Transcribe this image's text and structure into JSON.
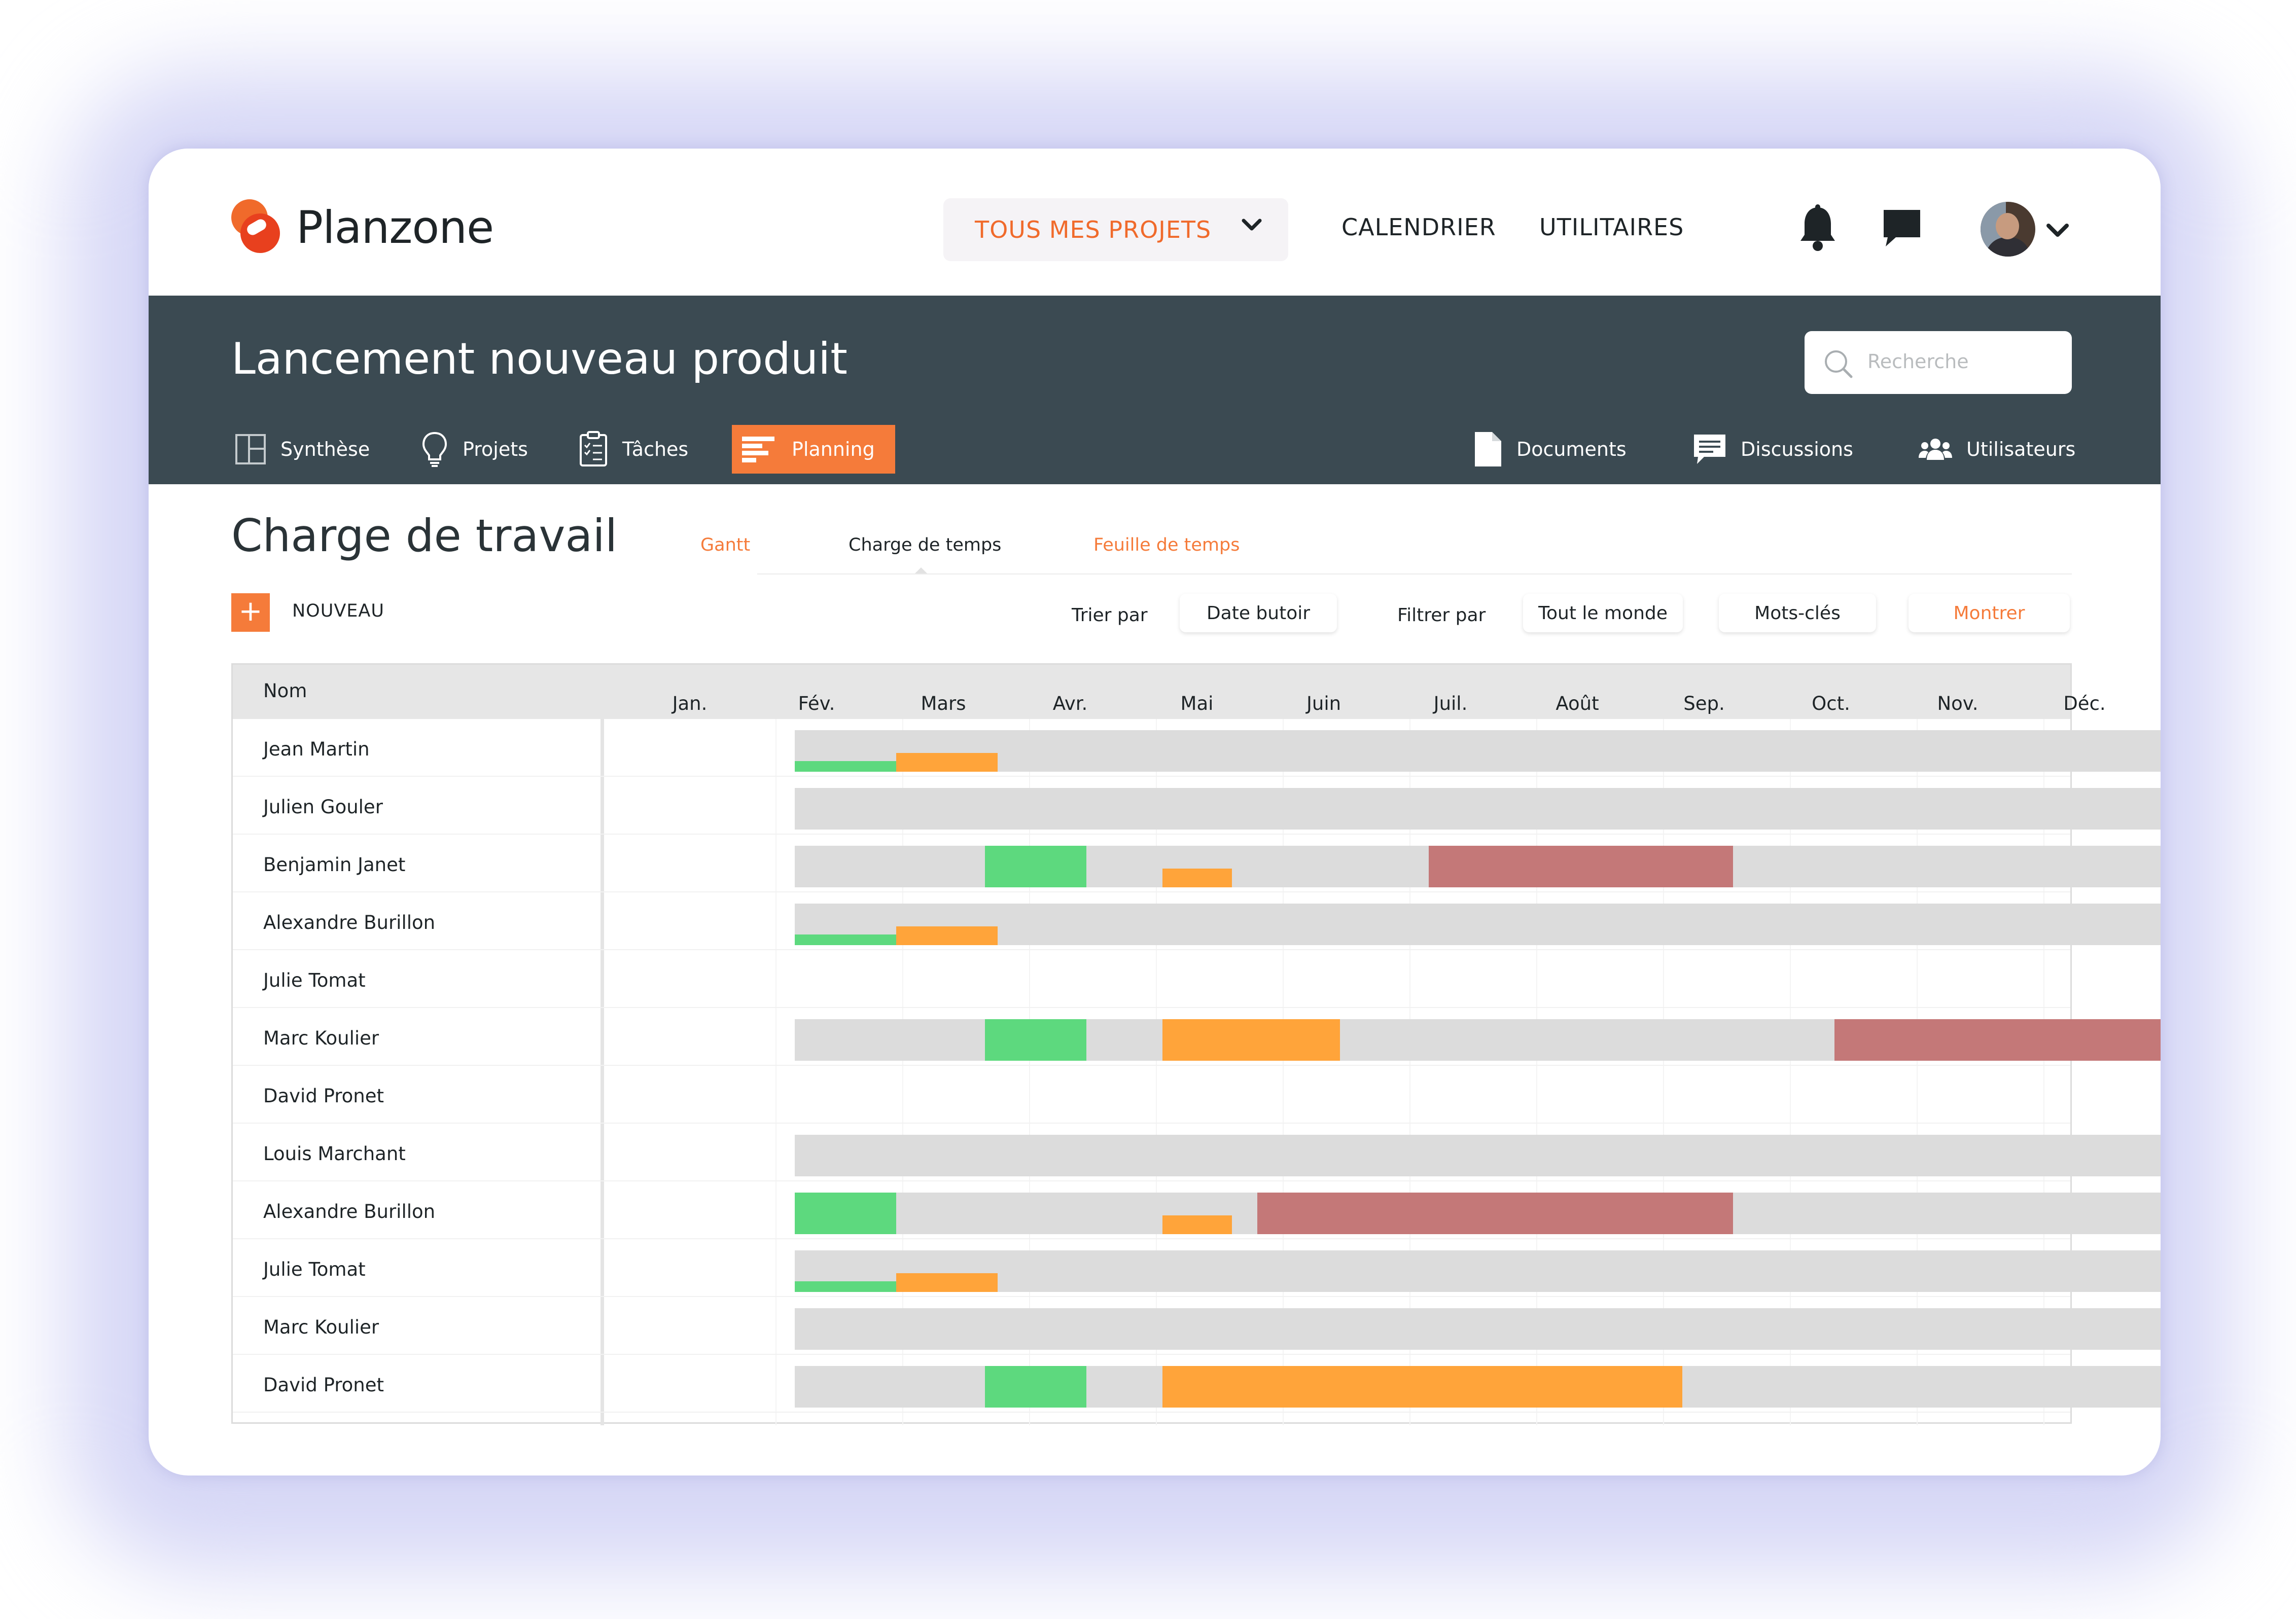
{
  "app": {
    "brand": "Planzone"
  },
  "topnav": {
    "projects_dropdown": "TOUS MES PROJETS",
    "links": [
      "CALENDRIER",
      "UTILITAIRES"
    ],
    "icons": [
      "bell-icon",
      "chat-icon",
      "avatar",
      "chevron-down-icon"
    ]
  },
  "project": {
    "title": "Lancement nouveau produit",
    "search_placeholder": "Recherche",
    "tabs": [
      {
        "label": "Synthèse",
        "icon": "layout-icon",
        "active": false
      },
      {
        "label": "Projets",
        "icon": "lightbulb-icon",
        "active": false
      },
      {
        "label": "Tâches",
        "icon": "checklist-icon",
        "active": false
      },
      {
        "label": "Planning",
        "icon": "gantt-icon",
        "active": true
      }
    ],
    "right_tabs": [
      {
        "label": "Documents",
        "icon": "document-icon"
      },
      {
        "label": "Discussions",
        "icon": "speech-bubble-icon"
      },
      {
        "label": "Utilisateurs",
        "icon": "users-icon"
      }
    ]
  },
  "page": {
    "title": "Charge de travail",
    "subtabs": [
      {
        "label": "Gantt",
        "active": false
      },
      {
        "label": "Charge de temps",
        "active": true
      },
      {
        "label": "Feuille de temps",
        "active": false
      }
    ],
    "new_label": "NOUVEAU",
    "sort_label": "Trier par",
    "sort_value": "Date butoir",
    "filter_label": "Filtrer par",
    "filter_value": "Tout le monde",
    "keywords": "Mots-clés",
    "show": "Montrer"
  },
  "colors": {
    "accent": "#f57b3a",
    "header_bg": "#3b4a52",
    "track": "#dcdcdc",
    "green": "#5dd97e",
    "orange": "#ffa43a",
    "red": "#c47878"
  },
  "table": {
    "name_header": "Nom",
    "months": [
      "Jan.",
      "Fév.",
      "Mars",
      "Avr.",
      "Mai",
      "Juin",
      "Juil.",
      "Août",
      "Sep.",
      "Oct.",
      "Nov.",
      "Déc."
    ],
    "rows": [
      {
        "name": "Jean Martin",
        "track": [
          1.15,
          12.0
        ],
        "segments": [
          {
            "start": 1.15,
            "end": 1.95,
            "level": 0.25,
            "color": "green"
          },
          {
            "start": 1.95,
            "end": 2.75,
            "level": 0.45,
            "color": "orange"
          }
        ]
      },
      {
        "name": "Julien Gouler",
        "track": [
          1.15,
          12.0
        ],
        "segments": []
      },
      {
        "name": "Benjamin Janet",
        "track": [
          1.15,
          12.0
        ],
        "segments": [
          {
            "start": 2.65,
            "end": 3.45,
            "level": 1.0,
            "color": "green"
          },
          {
            "start": 4.05,
            "end": 4.6,
            "level": 0.45,
            "color": "orange"
          },
          {
            "start": 6.15,
            "end": 8.55,
            "level": 1.0,
            "color": "red"
          }
        ]
      },
      {
        "name": "Alexandre Burillon",
        "track": [
          1.15,
          12.0
        ],
        "segments": [
          {
            "start": 1.15,
            "end": 1.95,
            "level": 0.25,
            "color": "green"
          },
          {
            "start": 1.95,
            "end": 2.75,
            "level": 0.45,
            "color": "orange"
          }
        ]
      },
      {
        "name": "Julie Tomat",
        "track": null,
        "segments": []
      },
      {
        "name": "Marc Koulier",
        "track": [
          1.15,
          12.0
        ],
        "segments": [
          {
            "start": 2.65,
            "end": 3.45,
            "level": 1.0,
            "color": "green"
          },
          {
            "start": 4.05,
            "end": 5.45,
            "level": 1.0,
            "color": "orange"
          },
          {
            "start": 9.35,
            "end": 12.0,
            "level": 1.0,
            "color": "red"
          }
        ]
      },
      {
        "name": "David Pronet",
        "track": null,
        "segments": []
      },
      {
        "name": "Louis Marchant",
        "track": [
          1.15,
          12.0
        ],
        "segments": []
      },
      {
        "name": "Alexandre Burillon",
        "track": [
          1.15,
          12.0
        ],
        "segments": [
          {
            "start": 1.15,
            "end": 1.95,
            "level": 1.0,
            "color": "green"
          },
          {
            "start": 4.05,
            "end": 4.6,
            "level": 0.45,
            "color": "orange"
          },
          {
            "start": 4.8,
            "end": 8.55,
            "level": 1.0,
            "color": "red"
          }
        ]
      },
      {
        "name": "Julie Tomat",
        "track": [
          1.15,
          12.0
        ],
        "segments": [
          {
            "start": 1.15,
            "end": 1.95,
            "level": 0.25,
            "color": "green"
          },
          {
            "start": 1.95,
            "end": 2.75,
            "level": 0.45,
            "color": "orange"
          }
        ]
      },
      {
        "name": "Marc Koulier",
        "track": [
          1.15,
          12.0
        ],
        "segments": []
      },
      {
        "name": "David Pronet",
        "track": [
          1.15,
          12.0
        ],
        "segments": [
          {
            "start": 2.65,
            "end": 3.45,
            "level": 1.0,
            "color": "green"
          },
          {
            "start": 4.05,
            "end": 8.15,
            "level": 1.0,
            "color": "orange"
          }
        ]
      }
    ]
  }
}
